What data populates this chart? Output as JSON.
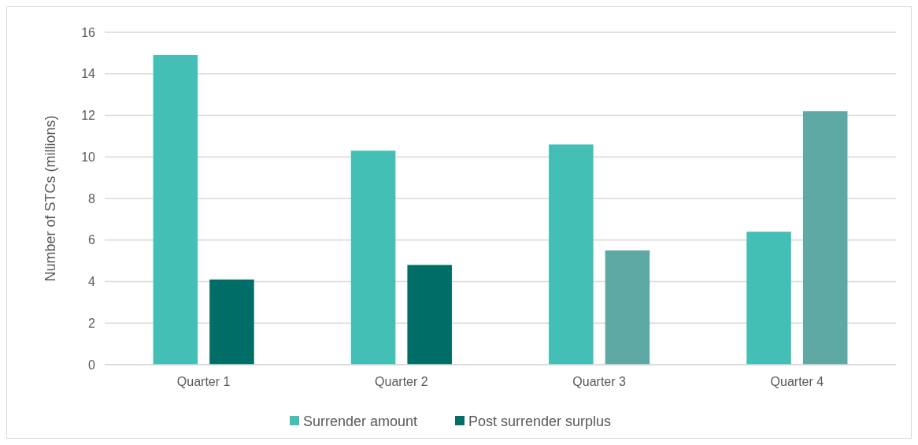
{
  "chart_data": {
    "type": "bar",
    "ylabel": "Number of STCs (millions)",
    "categories": [
      "Quarter 1",
      "Quarter 2",
      "Quarter 3",
      "Quarter 4"
    ],
    "series": [
      {
        "name": "Surrender amount",
        "color": "#43bfb5",
        "values": [
          14.9,
          10.3,
          10.6,
          6.4
        ]
      },
      {
        "name": "Post surrender surplus",
        "color": "#006e66",
        "colors": [
          "#006e66",
          "#006e66",
          "#5fa9a4",
          "#5fa9a4"
        ],
        "values": [
          4.1,
          4.8,
          5.5,
          12.2
        ]
      }
    ],
    "ylim": [
      0,
      16
    ],
    "yticks": [
      0,
      2,
      4,
      6,
      8,
      10,
      12,
      14,
      16
    ],
    "grid": "y",
    "legend": "bottom"
  }
}
